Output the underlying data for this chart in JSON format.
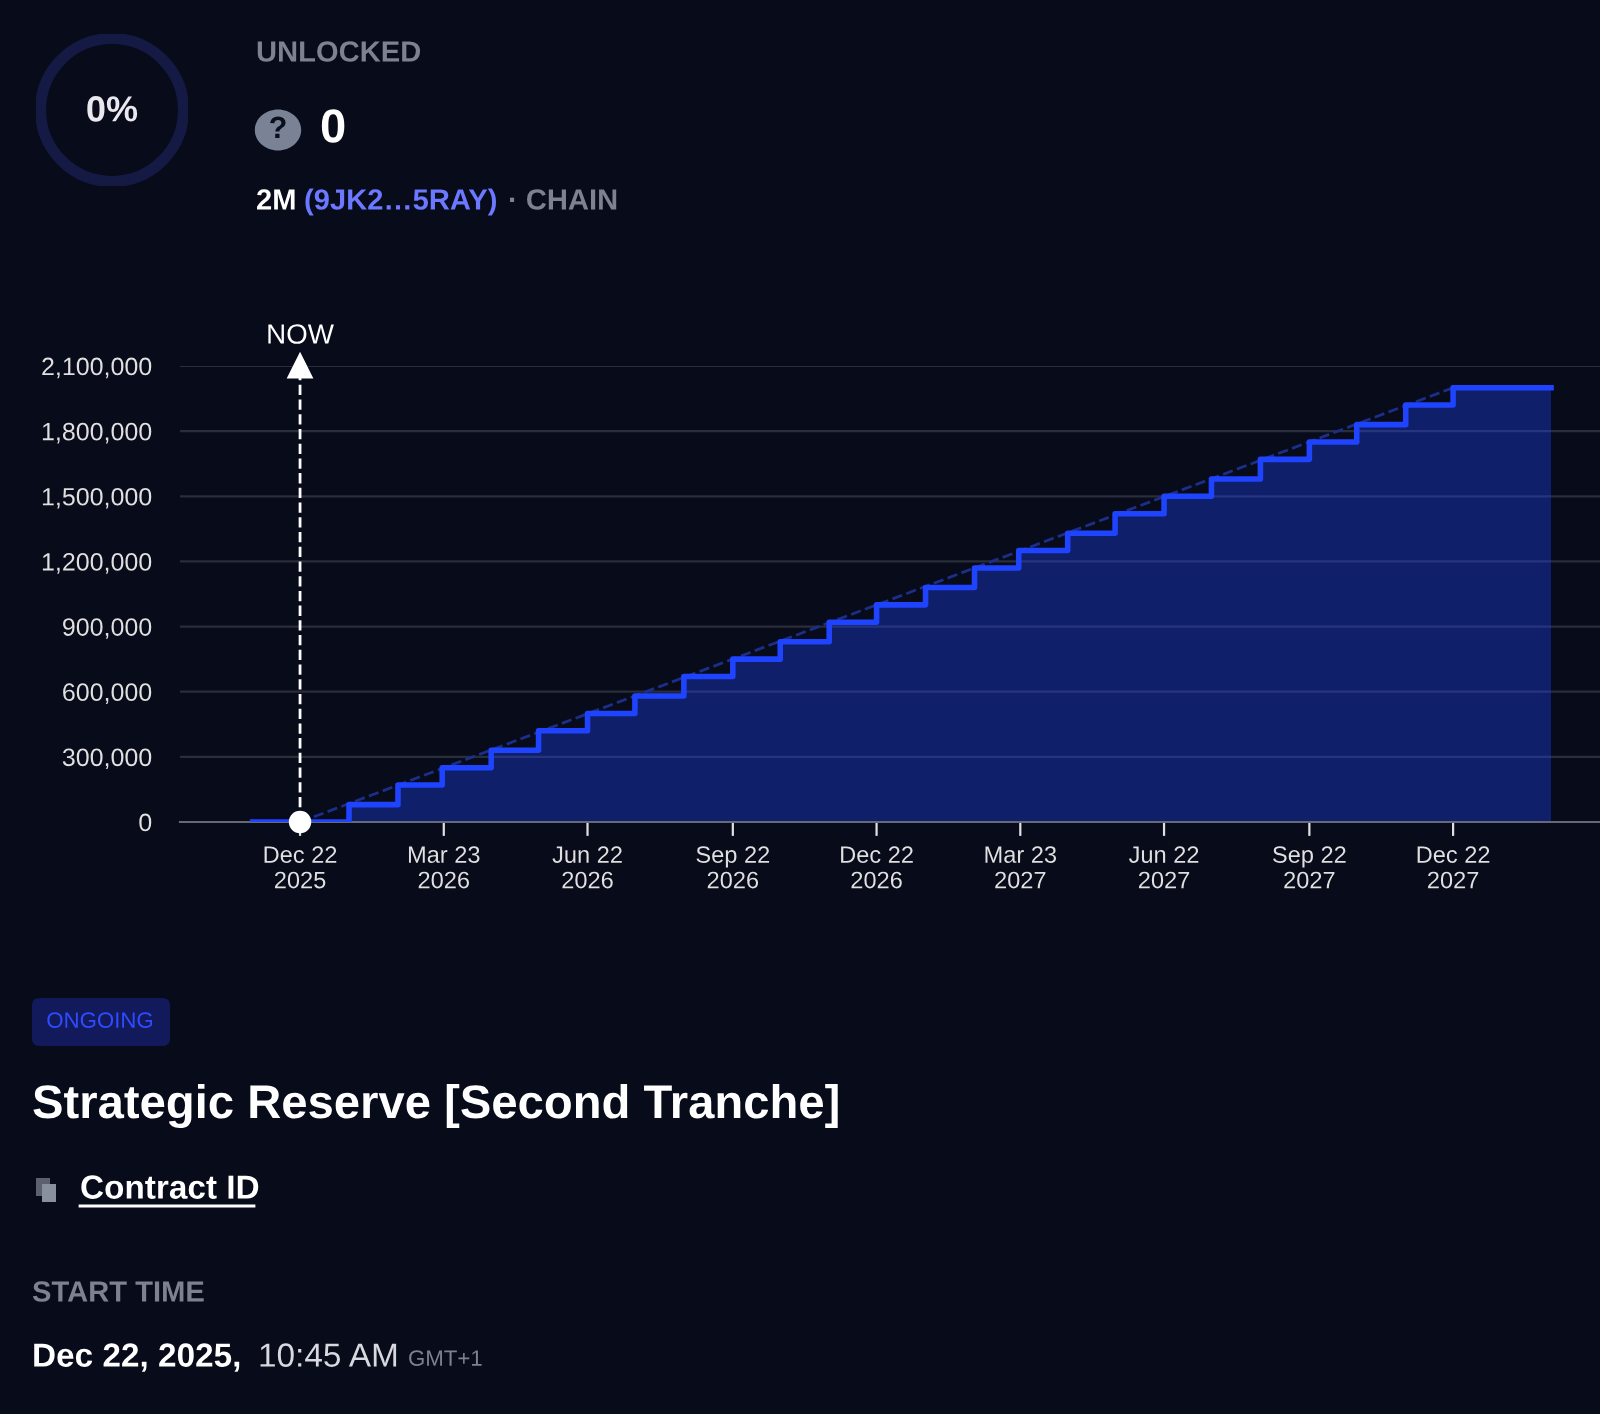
{
  "chart_data": {
    "type": "step",
    "title": "Strategic Reserve [Second Tranche]",
    "x": [
      "2025-11-22",
      "2025-12-22",
      "2026-01-22",
      "2026-02-22",
      "2026-03-22",
      "2026-04-22",
      "2026-05-22",
      "2026-06-22",
      "2026-07-22",
      "2026-08-22",
      "2026-09-22",
      "2026-10-22",
      "2026-11-22",
      "2026-12-22",
      "2027-01-22",
      "2027-02-22",
      "2027-03-22",
      "2027-04-22",
      "2027-05-22",
      "2027-06-22",
      "2027-07-22",
      "2027-08-22",
      "2027-09-22",
      "2027-10-22",
      "2027-11-22",
      "2027-12-22",
      "2028-02-22"
    ],
    "series": [
      {
        "color": "#1f44ff",
        "values": [
          0,
          0,
          80000,
          170000,
          250000,
          330000,
          420000,
          500000,
          580000,
          670000,
          750000,
          830000,
          920000,
          1000000,
          1080000,
          1170000,
          1250000,
          1330000,
          1420000,
          1500000,
          1580000,
          1670000,
          1750000,
          1830000,
          1920000,
          2000000,
          2000000
        ]
      },
      {
        "type": "line",
        "color": "#1b2f8a",
        "line_style": "dashed",
        "x": [
          "2025-12-22",
          "2027-12-22"
        ],
        "values": [
          0,
          2000000
        ]
      },
      {
        "type": "scatter",
        "color": "#ffffff",
        "marker": "circle",
        "x": [
          "2025-12-22"
        ],
        "values": [
          0
        ]
      }
    ],
    "xlim": [
      "2025-10-07",
      "2028-03-24"
    ],
    "xticks": [
      {
        "value": "2025-12-22",
        "label": "Dec 22\n2025"
      },
      {
        "value": "2026-03-23",
        "label": "Mar 23\n2026"
      },
      {
        "value": "2026-06-22",
        "label": "Jun 22\n2026"
      },
      {
        "value": "2026-09-22",
        "label": "Sep 22\n2026"
      },
      {
        "value": "2026-12-22",
        "label": "Dec 22\n2026"
      },
      {
        "value": "2027-03-23",
        "label": "Mar 23\n2027"
      },
      {
        "value": "2027-06-22",
        "label": "Jun 22\n2027"
      },
      {
        "value": "2027-09-22",
        "label": "Sep 22\n2027"
      },
      {
        "value": "2027-12-22",
        "label": "Dec 22\n2027"
      }
    ],
    "ylim": [
      0,
      2100000
    ],
    "yticks": [
      {
        "value": 0,
        "label": "0"
      },
      {
        "value": 300000,
        "label": "300,000"
      },
      {
        "value": 600000,
        "label": "600,000"
      },
      {
        "value": 900000,
        "label": "900,000"
      },
      {
        "value": 1200000,
        "label": "1,200,000"
      },
      {
        "value": 1500000,
        "label": "1,500,000"
      },
      {
        "value": 1800000,
        "label": "1,800,000"
      },
      {
        "value": 2100000,
        "label": "2,100,000"
      }
    ],
    "grid": "y",
    "ref_lines": [
      {
        "axis": "x",
        "value": "2025-12-22",
        "label": "NOW",
        "color": "#ffffff",
        "line_style": "dashed"
      }
    ],
    "annotations": [
      "UNLOCKED",
      "0%",
      "?",
      "0",
      "2M",
      "(9JK2…5RAY)",
      "· CHAIN",
      "ONGOING",
      "Contract ID",
      "START TIME",
      "Dec 22, 2025,",
      "10:45 AM",
      "GMT+1"
    ]
  }
}
